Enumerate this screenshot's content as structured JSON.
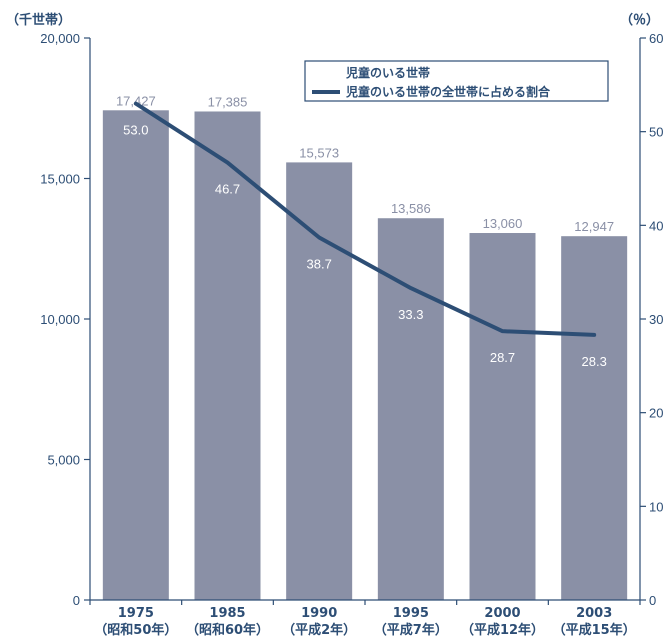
{
  "chart_data": {
    "type": "bar+line",
    "categories": [
      {
        "year": "1975",
        "era": "（昭和50年）"
      },
      {
        "year": "1985",
        "era": "（昭和60年）"
      },
      {
        "year": "1990",
        "era": "（平成2年）"
      },
      {
        "year": "1995",
        "era": "（平成7年）"
      },
      {
        "year": "2000",
        "era": "（平成12年）"
      },
      {
        "year": "2003",
        "era": "（平成15年）"
      }
    ],
    "series": [
      {
        "name": "児童のいる世帯",
        "kind": "bar",
        "axis": "left",
        "values": [
          17427,
          17385,
          15573,
          13586,
          13060,
          12947
        ],
        "labels": [
          "17,427",
          "17,385",
          "15,573",
          "13,586",
          "13,060",
          "12,947"
        ],
        "color": "#8a90a6"
      },
      {
        "name": "児童のいる世帯の全世帯に占める割合",
        "kind": "line",
        "axis": "right",
        "values": [
          53.0,
          46.7,
          38.7,
          33.3,
          28.7,
          28.3
        ],
        "labels": [
          "53.0",
          "46.7",
          "38.7",
          "33.3",
          "28.7",
          "28.3"
        ],
        "color": "#2d4e75"
      }
    ],
    "y_left": {
      "unit": "（千世帯）",
      "range": [
        0,
        20000
      ],
      "ticks": [
        0,
        5000,
        10000,
        15000,
        20000
      ],
      "tick_labels": [
        "0",
        "5,000",
        "10,000",
        "15,000",
        "20,000"
      ]
    },
    "y_right": {
      "unit": "（％）",
      "range": [
        0,
        60
      ],
      "ticks": [
        0,
        10,
        20,
        30,
        40,
        50,
        60
      ],
      "tick_labels": [
        "0",
        "10",
        "20",
        "30",
        "40",
        "50",
        "60"
      ]
    },
    "legend": {
      "placement": "top-right",
      "items": [
        "児童のいる世帯",
        "児童のいる世帯の全世帯に占める割合"
      ]
    },
    "grid": false,
    "colors": {
      "axis": "#2d4e75",
      "bar": "#8a90a6",
      "line": "#2d4e75",
      "bar_label": "#8a90a6",
      "line_label": "#ffffff"
    }
  }
}
